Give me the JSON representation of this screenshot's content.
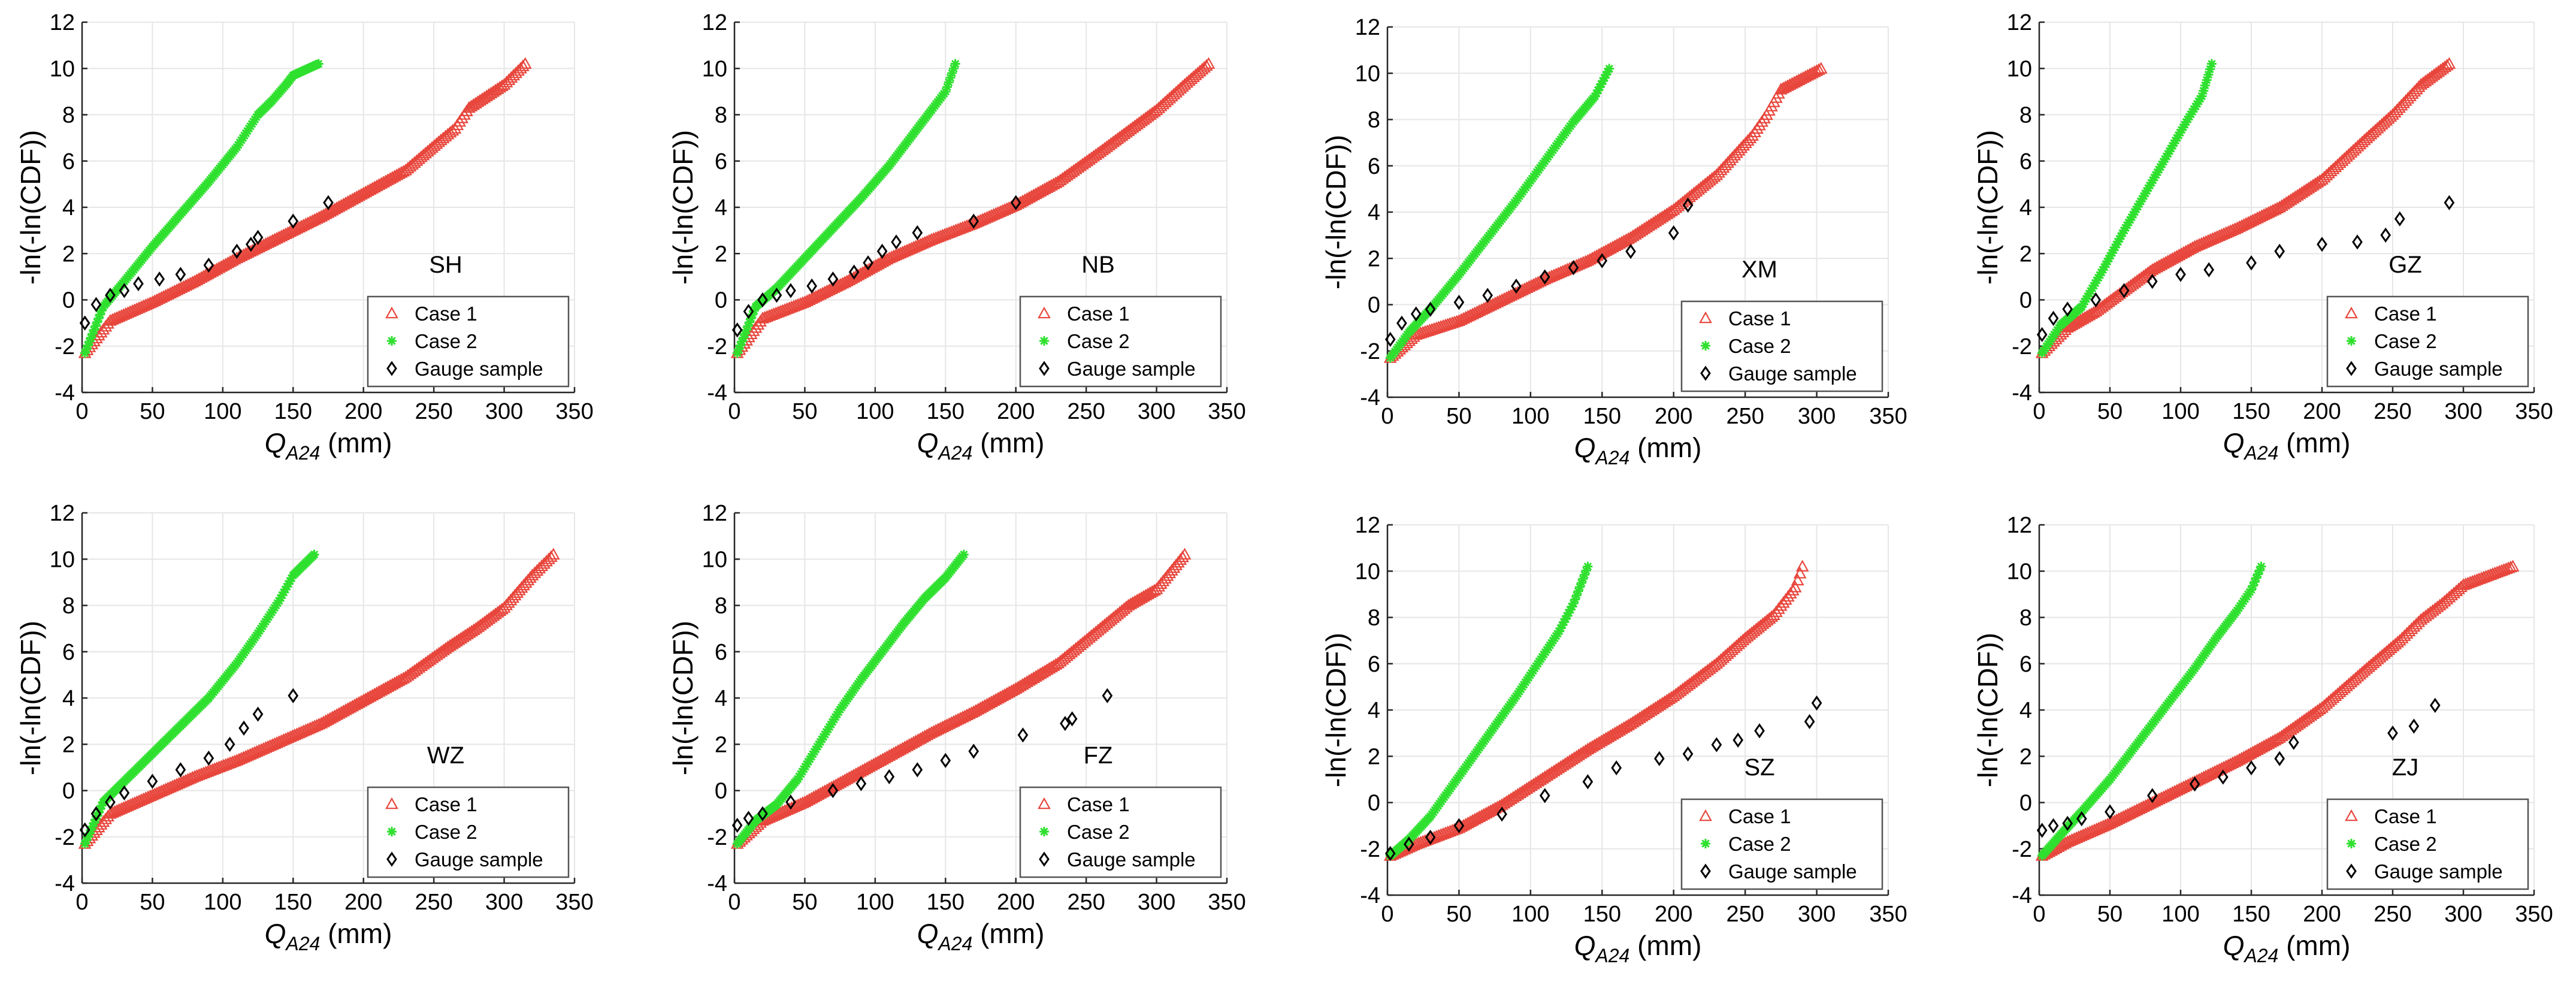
{
  "figure": {
    "colors": {
      "case1": "#e8463c",
      "case2": "#2fe02f",
      "gauge": "#000000",
      "grid": "#e6e6e6"
    }
  },
  "chart_data": [
    {
      "type": "scatter",
      "station": "SH",
      "ylabel": "-ln(-ln(CDF))",
      "xlabel": "Q",
      "xlabel_sub": "A24",
      "xlabel_unit": " (mm)",
      "xlim": [
        0,
        350
      ],
      "ylim": [
        -4,
        12
      ],
      "xticks": [
        0,
        50,
        100,
        150,
        200,
        250,
        300,
        350
      ],
      "yticks": [
        -4,
        -2,
        0,
        2,
        4,
        6,
        8,
        10,
        12
      ],
      "grid": true,
      "legend_position": "lower-right",
      "series": [
        {
          "name": "Case 1",
          "marker": "triangle",
          "x": [
            2,
            20,
            50,
            80,
            110,
            140,
            170,
            200,
            230,
            255,
            265,
            275,
            300,
            315
          ],
          "y": [
            -2.3,
            -0.9,
            -0.1,
            0.8,
            1.8,
            2.7,
            3.6,
            4.6,
            5.6,
            6.9,
            7.4,
            8.3,
            9.3,
            10.2
          ]
        },
        {
          "name": "Case 2",
          "marker": "star",
          "x": [
            2,
            15,
            30,
            50,
            70,
            90,
            110,
            125,
            135,
            145,
            150,
            168
          ],
          "y": [
            -2.3,
            -0.3,
            0.8,
            2.3,
            3.7,
            5.1,
            6.6,
            8.0,
            8.6,
            9.3,
            9.7,
            10.2
          ]
        },
        {
          "name": "Gauge sample",
          "marker": "diamond",
          "x": [
            2,
            10,
            20,
            30,
            40,
            55,
            70,
            90,
            110,
            120,
            125,
            150,
            175
          ],
          "y": [
            -1.0,
            -0.2,
            0.2,
            0.4,
            0.7,
            0.9,
            1.1,
            1.5,
            2.1,
            2.4,
            2.7,
            3.4,
            4.2
          ]
        }
      ],
      "legend": [
        "Case 1",
        "Case 2",
        "Gauge sample"
      ]
    },
    {
      "type": "scatter",
      "station": "NB",
      "ylabel": "-ln(-ln(CDF))",
      "xlabel": "Q",
      "xlabel_sub": "A24",
      "xlabel_unit": " (mm)",
      "xlim": [
        0,
        350
      ],
      "ylim": [
        -4,
        12
      ],
      "xticks": [
        0,
        50,
        100,
        150,
        200,
        250,
        300,
        350
      ],
      "yticks": [
        -4,
        -2,
        0,
        2,
        4,
        6,
        8,
        10,
        12
      ],
      "grid": true,
      "legend_position": "lower-right",
      "series": [
        {
          "name": "Case 1",
          "marker": "triangle",
          "x": [
            2,
            20,
            50,
            80,
            110,
            140,
            170,
            200,
            230,
            260,
            280,
            300,
            320,
            337
          ],
          "y": [
            -2.3,
            -0.8,
            -0.1,
            0.8,
            1.8,
            2.6,
            3.3,
            4.1,
            5.1,
            6.4,
            7.3,
            8.2,
            9.3,
            10.2
          ]
        },
        {
          "name": "Case 2",
          "marker": "star",
          "x": [
            2,
            15,
            30,
            50,
            70,
            90,
            110,
            125,
            140,
            150,
            157
          ],
          "y": [
            -2.3,
            -0.3,
            0.5,
            1.8,
            3.1,
            4.4,
            5.8,
            7.0,
            8.2,
            9.0,
            10.2
          ]
        },
        {
          "name": "Gauge sample",
          "marker": "diamond",
          "x": [
            2,
            10,
            20,
            30,
            40,
            55,
            70,
            85,
            95,
            105,
            115,
            130,
            170,
            200
          ],
          "y": [
            -1.3,
            -0.5,
            0.0,
            0.2,
            0.4,
            0.6,
            0.9,
            1.2,
            1.6,
            2.1,
            2.5,
            2.9,
            3.4,
            4.2
          ]
        }
      ],
      "legend": [
        "Case 1",
        "Case 2",
        "Gauge sample"
      ]
    },
    {
      "type": "scatter",
      "station": "XM",
      "ylabel": "-ln(-ln(CDF))",
      "xlabel": "Q",
      "xlabel_sub": "A24",
      "xlabel_unit": " (mm)",
      "xlim": [
        0,
        350
      ],
      "ylim": [
        -4,
        12
      ],
      "xticks": [
        0,
        50,
        100,
        150,
        200,
        250,
        300,
        350
      ],
      "yticks": [
        -4,
        -2,
        0,
        2,
        4,
        6,
        8,
        10,
        12
      ],
      "grid": true,
      "legend_position": "lower-right",
      "series": [
        {
          "name": "Case 1",
          "marker": "triangle",
          "x": [
            2,
            20,
            50,
            80,
            110,
            140,
            170,
            200,
            230,
            255,
            265,
            275,
            303
          ],
          "y": [
            -2.3,
            -1.3,
            -0.7,
            0.2,
            1.1,
            1.9,
            2.9,
            4.1,
            5.6,
            7.3,
            8.2,
            9.3,
            10.2
          ]
        },
        {
          "name": "Case 2",
          "marker": "star",
          "x": [
            2,
            15,
            30,
            50,
            70,
            90,
            110,
            130,
            145,
            155
          ],
          "y": [
            -2.3,
            -1.2,
            -0.2,
            1.3,
            2.9,
            4.5,
            6.2,
            7.9,
            9.0,
            10.2
          ]
        },
        {
          "name": "Gauge sample",
          "marker": "diamond",
          "x": [
            2,
            10,
            20,
            30,
            50,
            70,
            90,
            110,
            130,
            150,
            170,
            200,
            210
          ],
          "y": [
            -1.5,
            -0.8,
            -0.4,
            -0.2,
            0.1,
            0.4,
            0.8,
            1.2,
            1.6,
            1.9,
            2.3,
            3.1,
            4.3
          ]
        }
      ],
      "legend": [
        "Case 1",
        "Case 2",
        "Gauge sample"
      ]
    },
    {
      "type": "scatter",
      "station": "GZ",
      "ylabel": "-ln(-ln(CDF))",
      "xlabel": "Q",
      "xlabel_sub": "A24",
      "xlabel_unit": " (mm)",
      "xlim": [
        0,
        350
      ],
      "ylim": [
        -4,
        12
      ],
      "xticks": [
        0,
        50,
        100,
        150,
        200,
        250,
        300,
        350
      ],
      "yticks": [
        -4,
        -2,
        0,
        2,
        4,
        6,
        8,
        10,
        12
      ],
      "grid": true,
      "legend_position": "lower-right",
      "series": [
        {
          "name": "Case 1",
          "marker": "triangle",
          "x": [
            2,
            20,
            40,
            60,
            80,
            110,
            140,
            170,
            200,
            230,
            250,
            270,
            290
          ],
          "y": [
            -2.3,
            -1.2,
            -0.5,
            0.4,
            1.3,
            2.3,
            3.1,
            4.0,
            5.2,
            6.9,
            8.0,
            9.3,
            10.2
          ]
        },
        {
          "name": "Case 2",
          "marker": "star",
          "x": [
            2,
            15,
            30,
            45,
            60,
            75,
            90,
            105,
            115,
            122
          ],
          "y": [
            -2.3,
            -1.1,
            -0.3,
            1.3,
            3.0,
            4.6,
            6.2,
            7.8,
            8.8,
            10.2
          ]
        },
        {
          "name": "Gauge sample",
          "marker": "diamond",
          "x": [
            2,
            10,
            20,
            40,
            60,
            80,
            100,
            120,
            150,
            170,
            200,
            225,
            245,
            255,
            290
          ],
          "y": [
            -1.5,
            -0.8,
            -0.4,
            0.0,
            0.4,
            0.8,
            1.1,
            1.3,
            1.6,
            2.1,
            2.4,
            2.5,
            2.8,
            3.5,
            4.2
          ]
        }
      ],
      "legend": [
        "Case 1",
        "Case 2",
        "Gauge sample"
      ]
    },
    {
      "type": "scatter",
      "station": "WZ",
      "ylabel": "-ln(-ln(CDF))",
      "xlabel": "Q",
      "xlabel_sub": "A24",
      "xlabel_unit": " (mm)",
      "xlim": [
        0,
        350
      ],
      "ylim": [
        -4,
        12
      ],
      "xticks": [
        0,
        50,
        100,
        150,
        200,
        250,
        300,
        350
      ],
      "yticks": [
        -4,
        -2,
        0,
        2,
        4,
        6,
        8,
        10,
        12
      ],
      "grid": true,
      "legend_position": "lower-right",
      "series": [
        {
          "name": "Case 1",
          "marker": "triangle",
          "x": [
            2,
            20,
            50,
            80,
            110,
            140,
            170,
            200,
            230,
            260,
            280,
            300,
            320,
            335
          ],
          "y": [
            -2.3,
            -1.0,
            -0.2,
            0.6,
            1.3,
            2.1,
            2.9,
            3.9,
            4.9,
            6.2,
            7.0,
            7.9,
            9.3,
            10.2
          ]
        },
        {
          "name": "Case 2",
          "marker": "star",
          "x": [
            2,
            15,
            30,
            50,
            70,
            90,
            110,
            125,
            140,
            150,
            165
          ],
          "y": [
            -2.3,
            -0.5,
            0.4,
            1.6,
            2.8,
            4.0,
            5.5,
            6.8,
            8.2,
            9.3,
            10.2
          ]
        },
        {
          "name": "Gauge sample",
          "marker": "diamond",
          "x": [
            2,
            10,
            20,
            30,
            50,
            70,
            90,
            105,
            115,
            125,
            150
          ],
          "y": [
            -1.7,
            -1.0,
            -0.5,
            -0.1,
            0.4,
            0.9,
            1.4,
            2.0,
            2.7,
            3.3,
            4.1
          ]
        }
      ],
      "legend": [
        "Case 1",
        "Case 2",
        "Gauge sample"
      ]
    },
    {
      "type": "scatter",
      "station": "FZ",
      "ylabel": "-ln(-ln(CDF))",
      "xlabel": "Q",
      "xlabel_sub": "A24",
      "xlabel_unit": " (mm)",
      "xlim": [
        0,
        350
      ],
      "ylim": [
        -4,
        12
      ],
      "xticks": [
        0,
        50,
        100,
        150,
        200,
        250,
        300,
        350
      ],
      "yticks": [
        -4,
        -2,
        0,
        2,
        4,
        6,
        8,
        10,
        12
      ],
      "grid": true,
      "legend_position": "lower-right",
      "series": [
        {
          "name": "Case 1",
          "marker": "triangle",
          "x": [
            2,
            20,
            50,
            80,
            110,
            140,
            170,
            200,
            230,
            260,
            280,
            300,
            320
          ],
          "y": [
            -2.3,
            -1.3,
            -0.5,
            0.5,
            1.5,
            2.5,
            3.4,
            4.4,
            5.5,
            7.0,
            8.0,
            8.7,
            10.2
          ]
        },
        {
          "name": "Case 2",
          "marker": "star",
          "x": [
            2,
            15,
            30,
            45,
            60,
            75,
            90,
            105,
            120,
            135,
            150,
            163
          ],
          "y": [
            -2.3,
            -1.3,
            -0.6,
            0.5,
            2.0,
            3.5,
            4.8,
            6.0,
            7.2,
            8.3,
            9.2,
            10.2
          ]
        },
        {
          "name": "Gauge sample",
          "marker": "diamond",
          "x": [
            2,
            10,
            20,
            40,
            70,
            90,
            110,
            130,
            150,
            170,
            205,
            235,
            240,
            265
          ],
          "y": [
            -1.5,
            -1.2,
            -1.0,
            -0.5,
            0.0,
            0.3,
            0.6,
            0.9,
            1.3,
            1.7,
            2.4,
            2.9,
            3.1,
            4.1
          ]
        }
      ],
      "legend": [
        "Case 1",
        "Case 2",
        "Gauge sample"
      ]
    },
    {
      "type": "scatter",
      "station": "SZ",
      "ylabel": "-ln(-ln(CDF))",
      "xlabel": "Q",
      "xlabel_sub": "A24",
      "xlabel_unit": " (mm)",
      "xlim": [
        0,
        350
      ],
      "ylim": [
        -4,
        12
      ],
      "xticks": [
        0,
        50,
        100,
        150,
        200,
        250,
        300,
        350
      ],
      "yticks": [
        -4,
        -2,
        0,
        2,
        4,
        6,
        8,
        10,
        12
      ],
      "grid": true,
      "legend_position": "lower-right",
      "series": [
        {
          "name": "Case 1",
          "marker": "triangle",
          "x": [
            2,
            20,
            50,
            80,
            110,
            140,
            170,
            200,
            230,
            250,
            270,
            285,
            290
          ],
          "y": [
            -2.3,
            -1.8,
            -1.1,
            -0.1,
            1.1,
            2.3,
            3.4,
            4.6,
            6.0,
            7.1,
            8.1,
            9.3,
            10.2
          ]
        },
        {
          "name": "Case 2",
          "marker": "star",
          "x": [
            2,
            15,
            30,
            45,
            60,
            75,
            90,
            105,
            120,
            130,
            140
          ],
          "y": [
            -2.3,
            -1.6,
            -0.6,
            0.7,
            2.0,
            3.3,
            4.6,
            6.0,
            7.4,
            8.6,
            10.2
          ]
        },
        {
          "name": "Gauge sample",
          "marker": "diamond",
          "x": [
            2,
            15,
            30,
            50,
            80,
            110,
            140,
            160,
            190,
            210,
            230,
            245,
            260,
            295,
            300
          ],
          "y": [
            -2.2,
            -1.8,
            -1.5,
            -1.0,
            -0.5,
            0.3,
            0.9,
            1.5,
            1.9,
            2.1,
            2.5,
            2.7,
            3.1,
            3.5,
            4.3
          ]
        }
      ],
      "legend": [
        "Case 1",
        "Case 2",
        "Gauge sample"
      ]
    },
    {
      "type": "scatter",
      "station": "ZJ",
      "ylabel": "-ln(-ln(CDF))",
      "xlabel": "Q",
      "xlabel_sub": "A24",
      "xlabel_unit": " (mm)",
      "xlim": [
        0,
        350
      ],
      "ylim": [
        -4,
        12
      ],
      "xticks": [
        0,
        50,
        100,
        150,
        200,
        250,
        300,
        350
      ],
      "yticks": [
        -4,
        -2,
        0,
        2,
        4,
        6,
        8,
        10,
        12
      ],
      "grid": true,
      "legend_position": "lower-right",
      "series": [
        {
          "name": "Case 1",
          "marker": "triangle",
          "x": [
            2,
            20,
            50,
            80,
            110,
            140,
            170,
            200,
            230,
            255,
            270,
            285,
            300,
            335
          ],
          "y": [
            -2.3,
            -1.7,
            -0.9,
            0.0,
            0.9,
            1.8,
            2.8,
            4.1,
            5.7,
            7.0,
            7.9,
            8.6,
            9.4,
            10.2
          ]
        },
        {
          "name": "Case 2",
          "marker": "star",
          "x": [
            2,
            15,
            30,
            50,
            70,
            90,
            110,
            125,
            140,
            150,
            157
          ],
          "y": [
            -2.3,
            -1.4,
            -0.4,
            1.0,
            2.6,
            4.2,
            5.8,
            7.1,
            8.3,
            9.2,
            10.2
          ]
        },
        {
          "name": "Gauge sample",
          "marker": "diamond",
          "x": [
            2,
            10,
            20,
            30,
            50,
            80,
            110,
            130,
            150,
            170,
            180,
            250,
            265,
            280
          ],
          "y": [
            -1.2,
            -1.0,
            -0.9,
            -0.7,
            -0.4,
            0.3,
            0.8,
            1.1,
            1.5,
            1.9,
            2.6,
            3.0,
            3.3,
            4.2
          ]
        }
      ],
      "legend": [
        "Case 1",
        "Case 2",
        "Gauge sample"
      ]
    }
  ]
}
